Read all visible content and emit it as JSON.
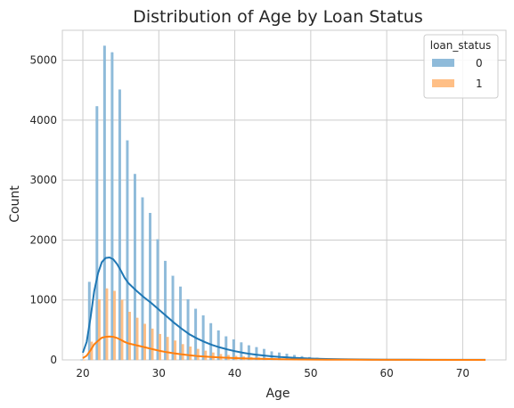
{
  "chart_data": {
    "type": "bar",
    "title": "Distribution of Age by Loan Status",
    "xlabel": "Age",
    "ylabel": "Count",
    "xlim": [
      17.3,
      75.7
    ],
    "ylim": [
      0,
      5500
    ],
    "xticks": [
      20,
      30,
      40,
      50,
      60,
      70
    ],
    "yticks": [
      0,
      1000,
      2000,
      3000,
      4000,
      5000
    ],
    "grid": true,
    "legend": {
      "title": "loan_status",
      "placement": "top-right"
    },
    "x": [
      20,
      21,
      22,
      23,
      24,
      25,
      26,
      27,
      28,
      29,
      30,
      31,
      32,
      33,
      34,
      35,
      36,
      37,
      38,
      39,
      40,
      41,
      42,
      43,
      44,
      45,
      46,
      47,
      48,
      49,
      50,
      51,
      52,
      53,
      54,
      55,
      56,
      57,
      58,
      59,
      60,
      61,
      62,
      63,
      64,
      65,
      66,
      67,
      68,
      69,
      70,
      71,
      72,
      73
    ],
    "series": [
      {
        "name": "0",
        "color": "#1f77b4",
        "values": [
          5,
          1300,
          4230,
          5240,
          5130,
          4510,
          3660,
          3100,
          2710,
          2450,
          2010,
          1650,
          1400,
          1220,
          1010,
          850,
          740,
          610,
          490,
          390,
          340,
          290,
          240,
          210,
          180,
          140,
          120,
          100,
          80,
          60,
          45,
          35,
          28,
          20,
          15,
          12,
          10,
          8,
          6,
          5,
          4,
          3,
          3,
          2,
          2,
          2,
          1,
          1,
          1,
          1,
          1,
          0,
          0,
          1
        ],
        "kde": [
          [
            20,
            120
          ],
          [
            20.5,
            300
          ],
          [
            21,
            700
          ],
          [
            21.5,
            1150
          ],
          [
            22,
            1450
          ],
          [
            22.5,
            1630
          ],
          [
            23,
            1700
          ],
          [
            23.5,
            1710
          ],
          [
            24,
            1680
          ],
          [
            24.5,
            1600
          ],
          [
            25,
            1490
          ],
          [
            25.5,
            1370
          ],
          [
            26,
            1280
          ],
          [
            27,
            1160
          ],
          [
            28,
            1050
          ],
          [
            29,
            950
          ],
          [
            30,
            840
          ],
          [
            31,
            730
          ],
          [
            32,
            620
          ],
          [
            33,
            520
          ],
          [
            34,
            430
          ],
          [
            35,
            360
          ],
          [
            36,
            300
          ],
          [
            37,
            250
          ],
          [
            38,
            210
          ],
          [
            39,
            175
          ],
          [
            40,
            145
          ],
          [
            41,
            120
          ],
          [
            42,
            100
          ],
          [
            43,
            83
          ],
          [
            44,
            70
          ],
          [
            45,
            58
          ],
          [
            46,
            48
          ],
          [
            48,
            33
          ],
          [
            50,
            22
          ],
          [
            52,
            15
          ],
          [
            55,
            9
          ],
          [
            58,
            6
          ],
          [
            60,
            4
          ],
          [
            63,
            3
          ],
          [
            66,
            2
          ],
          [
            70,
            1
          ],
          [
            73,
            1
          ]
        ]
      },
      {
        "name": "1",
        "color": "#ff7f0e",
        "values": [
          2,
          300,
          1010,
          1190,
          1150,
          1000,
          800,
          700,
          600,
          520,
          430,
          380,
          320,
          260,
          220,
          180,
          150,
          120,
          95,
          80,
          65,
          55,
          45,
          38,
          30,
          25,
          20,
          16,
          12,
          10,
          8,
          6,
          5,
          4,
          3,
          2,
          2,
          2,
          1,
          1,
          1,
          1,
          0,
          0,
          0,
          0,
          0,
          0,
          0,
          0,
          0,
          0,
          0,
          0
        ],
        "kde": [
          [
            20,
            30
          ],
          [
            20.5,
            70
          ],
          [
            21,
            160
          ],
          [
            21.5,
            260
          ],
          [
            22,
            320
          ],
          [
            22.5,
            370
          ],
          [
            23,
            385
          ],
          [
            23.5,
            390
          ],
          [
            24,
            385
          ],
          [
            24.5,
            365
          ],
          [
            25,
            335
          ],
          [
            25.5,
            300
          ],
          [
            26,
            275
          ],
          [
            27,
            245
          ],
          [
            28,
            215
          ],
          [
            29,
            185
          ],
          [
            30,
            155
          ],
          [
            31,
            130
          ],
          [
            32,
            110
          ],
          [
            33,
            92
          ],
          [
            34,
            78
          ],
          [
            35,
            66
          ],
          [
            36,
            56
          ],
          [
            38,
            42
          ],
          [
            40,
            30
          ],
          [
            42,
            22
          ],
          [
            44,
            16
          ],
          [
            46,
            11
          ],
          [
            48,
            8
          ],
          [
            50,
            6
          ],
          [
            52,
            4
          ],
          [
            55,
            3
          ],
          [
            58,
            2
          ],
          [
            60,
            1
          ],
          [
            73,
            0
          ]
        ]
      }
    ]
  }
}
